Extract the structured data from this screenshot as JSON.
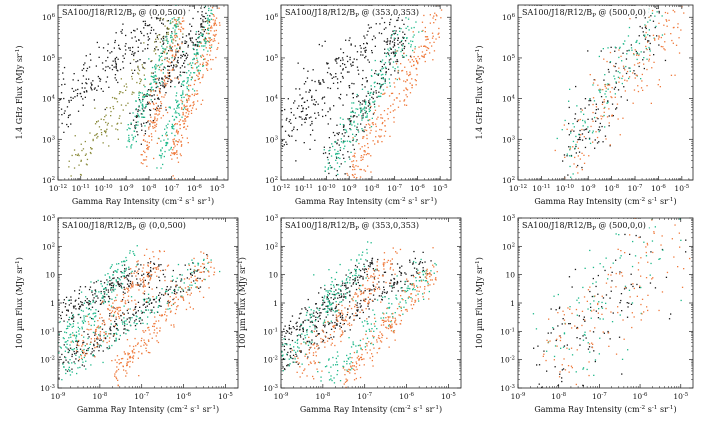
{
  "figure": {
    "panel_count": 6,
    "layout": "2 rows x 3 columns of log-log scatter plots"
  },
  "colors": {
    "black": "#1a1a1a",
    "green": "#1fb98a",
    "orange": "#ef7a3c",
    "olive": "#8a8a3a"
  },
  "chart_data": [
    {
      "type": "scatter",
      "title": "SA100/J18/R12/B_P @ (0,0,500)",
      "xlabel": "Gamma Ray Intensity (cm^-2 s^-1 sr^-1)",
      "ylabel": "1.4 GHz Flux (MJy sr^-1)",
      "xlog": true,
      "ylog": true,
      "xlim": [
        1e-12,
        3e-05
      ],
      "ylim": [
        100,
        2000000
      ],
      "x_ticks": [
        "10^-12",
        "10^-11",
        "10^-10",
        "10^-9",
        "10^-8",
        "10^-7",
        "10^-6",
        "10^-5"
      ],
      "y_ticks": [
        "10^2",
        "10^3",
        "10^4",
        "10^5",
        "10^6"
      ],
      "series": [
        {
          "color": "#1a1a1a",
          "bands": [
            {
              "x0": 1e-12,
              "y0": 8000,
              "x1": 1e-07,
              "y1": 1000000,
              "spread": 0.35,
              "n": 260
            },
            {
              "x0": 2e-09,
              "y0": 2000,
              "x1": 3e-06,
              "y1": 1000000,
              "spread": 0.3,
              "n": 240
            }
          ]
        },
        {
          "color": "#8a8a3a",
          "bands": [
            {
              "x0": 3e-12,
              "y0": 150,
              "x1": 2e-07,
              "y1": 900000,
              "spread": 0.3,
              "n": 180
            }
          ]
        },
        {
          "color": "#1fb98a",
          "bands": [
            {
              "x0": 1e-09,
              "y0": 900,
              "x1": 2e-07,
              "y1": 1000000,
              "spread": 0.25,
              "n": 160
            },
            {
              "x0": 3e-08,
              "y0": 400,
              "x1": 5e-06,
              "y1": 1000000,
              "spread": 0.25,
              "n": 200
            }
          ]
        },
        {
          "color": "#ef7a3c",
          "bands": [
            {
              "x0": 5e-09,
              "y0": 300,
              "x1": 3e-07,
              "y1": 900000,
              "spread": 0.3,
              "n": 160
            },
            {
              "x0": 1e-07,
              "y0": 400,
              "x1": 1e-05,
              "y1": 1000000,
              "spread": 0.3,
              "n": 220
            }
          ]
        }
      ]
    },
    {
      "type": "scatter",
      "title": "SA100/J18/R12/B_P @ (353,0,353)",
      "xlabel": "Gamma Ray Intensity (cm^-2 s^-1 sr^-1)",
      "ylabel": "",
      "xlog": true,
      "ylog": true,
      "xlim": [
        1e-12,
        3e-05
      ],
      "ylim": [
        100,
        2000000
      ],
      "x_ticks": [
        "10^-12",
        "10^-11",
        "10^-10",
        "10^-9",
        "10^-8",
        "10^-7",
        "10^-6",
        "10^-5"
      ],
      "y_ticks": [
        "10^2",
        "10^3",
        "10^4",
        "10^5",
        "10^6"
      ],
      "series": [
        {
          "color": "#1a1a1a",
          "bands": [
            {
              "x0": 1e-12,
              "y0": 2000,
              "x1": 2e-07,
              "y1": 1000000,
              "spread": 0.45,
              "n": 280
            },
            {
              "x0": 1e-10,
              "y0": 150,
              "x1": 3e-07,
              "y1": 600000,
              "spread": 0.4,
              "n": 180
            }
          ]
        },
        {
          "color": "#1fb98a",
          "bands": [
            {
              "x0": 1e-10,
              "y0": 200,
              "x1": 1e-06,
              "y1": 1000000,
              "spread": 0.3,
              "n": 220
            }
          ]
        },
        {
          "color": "#ef7a3c",
          "bands": [
            {
              "x0": 1e-09,
              "y0": 150,
              "x1": 1e-05,
              "y1": 1000000,
              "spread": 0.3,
              "n": 240
            }
          ]
        }
      ]
    },
    {
      "type": "scatter",
      "title": "SA100/J18/R12/B_P @ (500,0,0)",
      "xlabel": "Gamma Ray Intensity (cm^-2 s^-1 sr^-1)",
      "ylabel": "1.4 GHz Flux (MJy sr^-1)",
      "xlog": true,
      "ylog": true,
      "xlim": [
        1e-12,
        3e-05
      ],
      "ylim": [
        100,
        2000000
      ],
      "x_ticks": [
        "10^-12",
        "10^-11",
        "10^-10",
        "10^-9",
        "10^-8",
        "10^-7",
        "10^-6",
        "10^-5"
      ],
      "y_ticks": [
        "10^2",
        "10^3",
        "10^4",
        "10^5",
        "10^6"
      ],
      "series": [
        {
          "color": "#1a1a1a",
          "bands": [
            {
              "x0": 1e-10,
              "y0": 400,
              "x1": 1e-06,
              "y1": 1500000,
              "spread": 0.5,
              "n": 150
            }
          ]
        },
        {
          "color": "#1fb98a",
          "bands": [
            {
              "x0": 1e-10,
              "y0": 500,
              "x1": 1e-06,
              "y1": 1500000,
              "spread": 0.5,
              "n": 130
            }
          ]
        },
        {
          "color": "#ef7a3c",
          "bands": [
            {
              "x0": 1e-10,
              "y0": 400,
              "x1": 1e-05,
              "y1": 1500000,
              "spread": 0.5,
              "n": 180
            }
          ]
        }
      ]
    },
    {
      "type": "scatter",
      "title": "SA100/J18/R12/B_P @ (0,0,500)",
      "xlabel": "Gamma Ray Intensity (cm^-2 s^-1 sr^-1)",
      "ylabel": "100 µm Flux (MJy sr^-1)",
      "xlog": true,
      "ylog": true,
      "xlim": [
        1e-09,
        2e-05
      ],
      "ylim": [
        0.001,
        1000
      ],
      "x_ticks": [
        "10^-9",
        "10^-8",
        "10^-7",
        "10^-6",
        "10^-5"
      ],
      "y_ticks": [
        "10^-3",
        "10^-2",
        "10^-1",
        "1",
        "10",
        "10^2",
        "10^3"
      ],
      "series": [
        {
          "color": "#1a1a1a",
          "bands": [
            {
              "x0": 1e-09,
              "y0": 0.5,
              "x1": 3e-07,
              "y1": 20,
              "spread": 0.25,
              "n": 200
            },
            {
              "x0": 1e-09,
              "y0": 0.006,
              "x1": 3e-06,
              "y1": 20,
              "spread": 0.25,
              "n": 220
            }
          ]
        },
        {
          "color": "#1fb98a",
          "bands": [
            {
              "x0": 1e-09,
              "y0": 0.02,
              "x1": 5e-08,
              "y1": 40,
              "spread": 0.35,
              "n": 180
            },
            {
              "x0": 1e-09,
              "y0": 0.003,
              "x1": 5e-06,
              "y1": 30,
              "spread": 0.3,
              "n": 160
            }
          ]
        },
        {
          "color": "#ef7a3c",
          "bands": [
            {
              "x0": 3e-09,
              "y0": 0.02,
              "x1": 3e-07,
              "y1": 40,
              "spread": 0.35,
              "n": 200
            },
            {
              "x0": 2e-08,
              "y0": 0.003,
              "x1": 5e-06,
              "y1": 30,
              "spread": 0.3,
              "n": 200
            }
          ]
        }
      ]
    },
    {
      "type": "scatter",
      "title": "SA100/J18/R12/B_P @ (353,0,353)",
      "xlabel": "Gamma Ray Intensity (cm^-2 s^-1 sr^-1)",
      "ylabel": "100 µm Flux (MJy sr^-1)",
      "xlog": true,
      "ylog": true,
      "xlim": [
        1e-09,
        2e-05
      ],
      "ylim": [
        0.001,
        1000
      ],
      "x_ticks": [
        "10^-9",
        "10^-8",
        "10^-7",
        "10^-6",
        "10^-5"
      ],
      "y_ticks": [
        "10^-3",
        "10^-2",
        "10^-1",
        "1",
        "10",
        "10^2",
        "10^3"
      ],
      "series": [
        {
          "color": "#1a1a1a",
          "bands": [
            {
              "x0": 1e-09,
              "y0": 0.05,
              "x1": 2e-07,
              "y1": 30,
              "spread": 0.25,
              "n": 200
            },
            {
              "x0": 1e-09,
              "y0": 0.008,
              "x1": 3e-06,
              "y1": 40,
              "spread": 0.25,
              "n": 220
            }
          ]
        },
        {
          "color": "#1fb98a",
          "bands": [
            {
              "x0": 1e-09,
              "y0": 0.01,
              "x1": 1e-07,
              "y1": 40,
              "spread": 0.35,
              "n": 180
            },
            {
              "x0": 1e-08,
              "y0": 0.002,
              "x1": 5e-06,
              "y1": 30,
              "spread": 0.3,
              "n": 160
            }
          ]
        },
        {
          "color": "#ef7a3c",
          "bands": [
            {
              "x0": 3e-09,
              "y0": 0.005,
              "x1": 5e-07,
              "y1": 40,
              "spread": 0.35,
              "n": 200
            },
            {
              "x0": 3e-08,
              "y0": 0.002,
              "x1": 5e-06,
              "y1": 20,
              "spread": 0.3,
              "n": 200
            }
          ]
        }
      ]
    },
    {
      "type": "scatter",
      "title": "SA100/J18/R12/B_P @ (500,0,0)",
      "xlabel": "Gamma Ray Intensity (cm^-2 s^-1 sr^-1)",
      "ylabel": "100 µm Flux (MJy sr^-1)",
      "xlog": true,
      "ylog": true,
      "xlim": [
        1e-09,
        2e-05
      ],
      "ylim": [
        0.001,
        1000
      ],
      "x_ticks": [
        "10^-9",
        "10^-8",
        "10^-7",
        "10^-6",
        "10^-5"
      ],
      "y_ticks": [
        "10^-3",
        "10^-2",
        "10^-1",
        "1",
        "10",
        "10^2",
        "10^3"
      ],
      "series": [
        {
          "color": "#1a1a1a",
          "bands": [
            {
              "x0": 5e-09,
              "y0": 0.005,
              "x1": 3e-06,
              "y1": 100,
              "spread": 1.0,
              "n": 110
            }
          ]
        },
        {
          "color": "#1fb98a",
          "bands": [
            {
              "x0": 5e-09,
              "y0": 0.005,
              "x1": 3e-06,
              "y1": 200,
              "spread": 1.0,
              "n": 100
            }
          ]
        },
        {
          "color": "#ef7a3c",
          "bands": [
            {
              "x0": 5e-09,
              "y0": 0.005,
              "x1": 5e-06,
              "y1": 200,
              "spread": 1.0,
              "n": 150
            }
          ]
        }
      ]
    }
  ]
}
